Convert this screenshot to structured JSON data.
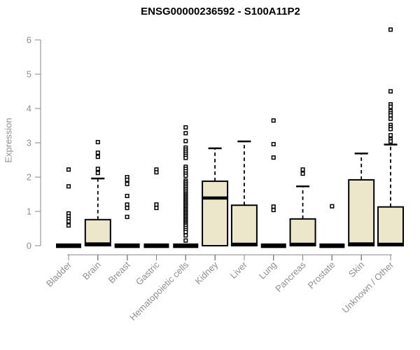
{
  "title": "ENSG00000236592 - S100A11P2",
  "ylabel": "Expression",
  "colors": {
    "background": "#ffffff",
    "box_fill": "#ece6cb",
    "box_stroke": "#000000",
    "axis_line": "#848484",
    "axis_text": "#8f8f8f",
    "title_text": "#000000"
  },
  "chart_data": {
    "type": "boxplot",
    "title": "ENSG00000236592 - S100A11P2",
    "xlabel": "",
    "ylabel": "Expression",
    "ylim": [
      0,
      6.4
    ],
    "yticks": [
      0,
      1,
      2,
      3,
      4,
      5,
      6
    ],
    "grid": false,
    "legend": false,
    "categories": [
      "Bladder",
      "Brain",
      "Breast",
      "Gastric",
      "Hematopoietic cells",
      "Kidney",
      "Liver",
      "Lung",
      "Pancreas",
      "Prostate",
      "Skin",
      "Unknown / Other"
    ],
    "series": [
      {
        "category": "Bladder",
        "collapsed": true,
        "q1": 0,
        "median": 0,
        "q3": 0,
        "whisker_low": 0,
        "whisker_high": 0,
        "outliers": [
          2.22,
          1.73,
          0.94,
          0.86,
          0.78,
          0.71,
          0.59
        ]
      },
      {
        "category": "Brain",
        "collapsed": false,
        "q1": 0,
        "median": 0.05,
        "q3": 0.76,
        "whisker_low": 0,
        "whisker_high": 1.96,
        "outliers": [
          3.02,
          2.71,
          2.59,
          2.24,
          2.12
        ]
      },
      {
        "category": "Breast",
        "collapsed": true,
        "q1": 0,
        "median": 0,
        "q3": 0,
        "whisker_low": 0,
        "whisker_high": 0,
        "outliers": [
          2.0,
          1.92,
          1.8,
          1.45,
          1.2,
          1.1,
          0.84
        ]
      },
      {
        "category": "Gastric",
        "collapsed": true,
        "q1": 0,
        "median": 0,
        "q3": 0,
        "whisker_low": 0,
        "whisker_high": 0,
        "outliers": [
          2.22,
          2.14,
          1.2,
          1.1
        ]
      },
      {
        "category": "Hematopoietic cells",
        "collapsed": true,
        "q1": 0,
        "median": 0,
        "q3": 0,
        "whisker_low": 0,
        "whisker_high": 0,
        "outliers": [
          3.45,
          3.28,
          3.05,
          2.86,
          2.8,
          2.74,
          2.68,
          2.62,
          2.56,
          2.3,
          2.24,
          2.17,
          2.1,
          2.04,
          1.9,
          1.85,
          1.8,
          1.75,
          1.7,
          1.65,
          1.6,
          1.55,
          1.5,
          1.46,
          1.42,
          1.38,
          1.34,
          1.3,
          1.26,
          1.22,
          1.18,
          1.14,
          1.1,
          1.06,
          1.02,
          0.98,
          0.94,
          0.9,
          0.86,
          0.82,
          0.78,
          0.74,
          0.7,
          0.66,
          0.62,
          0.58,
          0.52,
          0.46,
          0.4,
          0.3,
          0.15
        ]
      },
      {
        "category": "Kidney",
        "collapsed": false,
        "q1": 0,
        "median": 1.39,
        "q3": 1.88,
        "whisker_low": 0,
        "whisker_high": 2.84,
        "outliers": []
      },
      {
        "category": "Liver",
        "collapsed": false,
        "q1": 0,
        "median": 0.04,
        "q3": 1.18,
        "whisker_low": 0,
        "whisker_high": 3.04,
        "outliers": []
      },
      {
        "category": "Lung",
        "collapsed": true,
        "q1": 0,
        "median": 0,
        "q3": 0,
        "whisker_low": 0,
        "whisker_high": 0,
        "outliers": [
          3.65,
          2.96,
          2.57,
          1.14,
          1.04
        ]
      },
      {
        "category": "Pancreas",
        "collapsed": false,
        "q1": 0,
        "median": 0.04,
        "q3": 0.78,
        "whisker_low": 0,
        "whisker_high": 1.73,
        "outliers": [
          2.22,
          2.1
        ]
      },
      {
        "category": "Prostate",
        "collapsed": true,
        "q1": 0,
        "median": 0,
        "q3": 0,
        "whisker_low": 0,
        "whisker_high": 0,
        "outliers": [
          1.15
        ]
      },
      {
        "category": "Skin",
        "collapsed": false,
        "q1": 0,
        "median": 0.05,
        "q3": 1.92,
        "whisker_low": 0,
        "whisker_high": 2.69,
        "outliers": []
      },
      {
        "category": "Unknown / Other",
        "collapsed": false,
        "q1": 0,
        "median": 0.04,
        "q3": 1.13,
        "whisker_low": 0,
        "whisker_high": 2.95,
        "outliers": [
          6.3,
          4.5,
          4.12,
          4.05,
          3.92,
          3.86,
          3.8,
          3.7,
          3.52,
          3.46,
          3.4,
          3.22,
          3.1,
          3.04
        ]
      }
    ]
  }
}
